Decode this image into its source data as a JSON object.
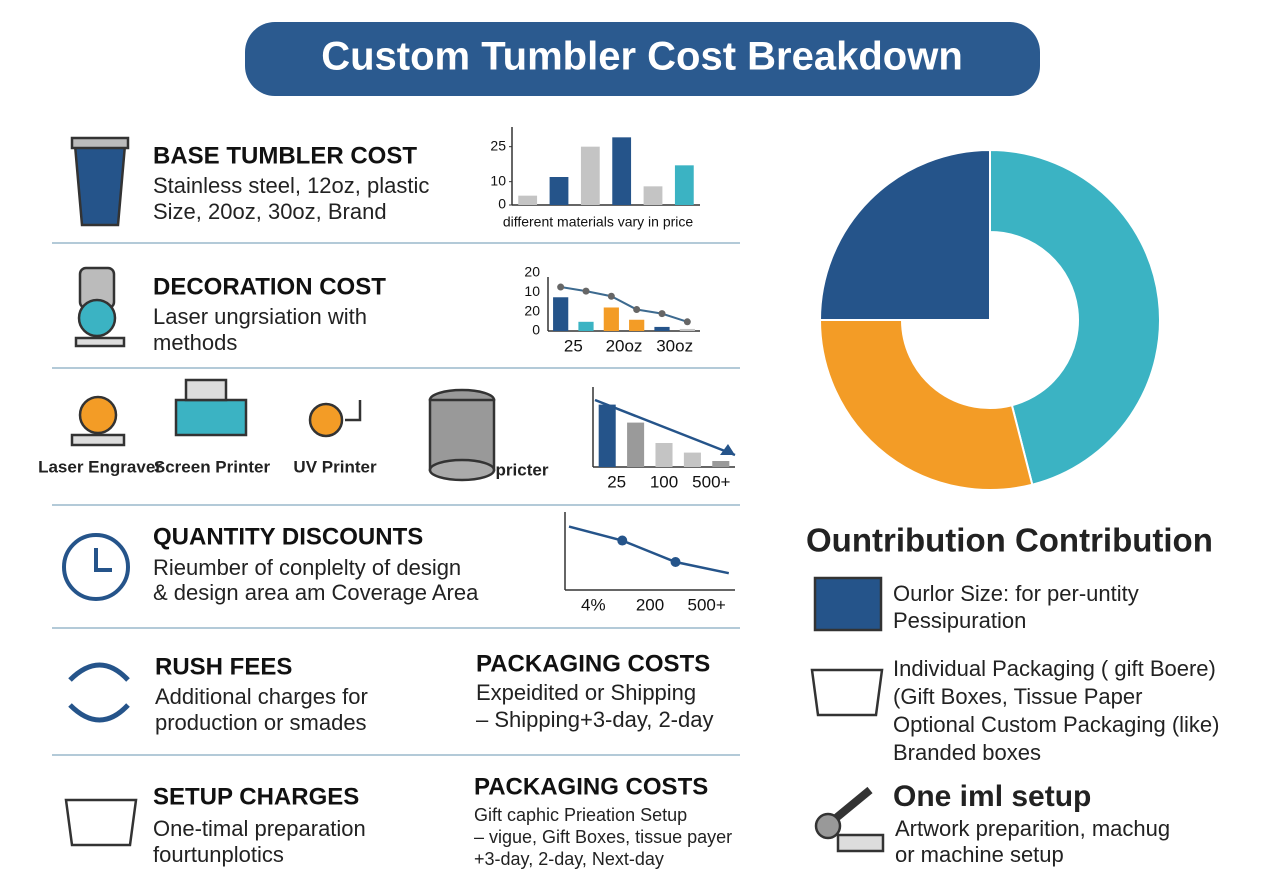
{
  "title": "Custom Tumbler Cost Breakdown",
  "sections": [
    {
      "heading": "BASE TUMBLER COST",
      "lines": [
        "Stainless steel, 12oz, plastic",
        "Size, 20oz, 30oz, Brand"
      ]
    },
    {
      "heading": "DECORATION COST",
      "lines": [
        "Laser ungrsiation with",
        "methods"
      ]
    },
    {
      "heading": "QUANTITY DISCOUNTS",
      "lines": [
        "Rieumber of conplelty of design",
        "&  design area am Coverage Area"
      ]
    },
    {
      "heading": "RUSH FEES",
      "lines": [
        "Additional charges for",
        "production or smades"
      ]
    },
    {
      "heading": "PACKAGING COSTS",
      "lines": [
        "Expeidited or Shipping",
        "– Shipping+3-day, 2-day"
      ]
    },
    {
      "heading": "SETUP CHARGES",
      "lines": [
        "One-timal preparation",
        "fourtunplotics"
      ]
    },
    {
      "heading": "PACKAGING COSTS",
      "lines": [
        "Gift caphic Prieation Setup",
        "– vigue, Gift Boxes, tissue payer",
        "+3-day, 2-day, Next-day"
      ]
    }
  ],
  "equipment": [
    "Laser Engraver",
    "Screen Printer",
    "UV Printer",
    "pricter"
  ],
  "contribution": {
    "heading": "Ountribution Contribution",
    "items": [
      [
        "Ourlor Size: for per-untity",
        "Pessipuration"
      ],
      [
        "Individual Packaging ( gift Boere)",
        "(Gift Boxes, Tissue Paper",
        "Optional Custom Packaging (like)",
        "Branded boxes"
      ]
    ],
    "setup": {
      "heading": "One iml setup",
      "lines": [
        "Artwork preparition, machug",
        "or machine setup"
      ]
    }
  },
  "chart_data": [
    {
      "type": "bar",
      "caption": "different materials vary in price",
      "categories": [
        null,
        null,
        null,
        null,
        null,
        null
      ],
      "values": [
        4,
        12,
        25,
        29,
        8,
        17
      ],
      "colors": [
        "#c4c4c4",
        "#25548a",
        "#c4c4c4",
        "#25548a",
        "#c4c4c4",
        "#3bb3c3"
      ],
      "ylim": [
        0,
        30
      ],
      "yticks": [
        25,
        10,
        0
      ]
    },
    {
      "type": "bar-line",
      "y_labels": [
        "20",
        "10",
        "20",
        "0"
      ],
      "x_labels": [
        "25",
        "20oz",
        "30oz"
      ],
      "values": [
        33,
        9,
        23,
        11,
        4,
        2
      ],
      "colors": [
        "#25548a",
        "#3bb3c3",
        "#f39c26",
        "#f39c26",
        "#25548a",
        "#c4c4c4"
      ],
      "line_values": [
        43,
        39,
        34,
        21,
        17,
        9
      ],
      "line_color": "#3d6a8f",
      "ylim": [
        0,
        45
      ]
    },
    {
      "type": "bar",
      "x_labels": [
        "25",
        "100",
        "500+"
      ],
      "values": [
        52,
        37,
        20,
        12,
        5
      ],
      "colors": [
        "#25548a",
        "#9a9a9a",
        "#c4c4c4",
        "#c4c4c4",
        "#9a9a9a"
      ],
      "ylim": [
        0,
        60
      ]
    },
    {
      "type": "line",
      "x_labels": [
        "4%",
        "200",
        "500+"
      ],
      "values": [
        68,
        53,
        30,
        18
      ],
      "color": "#25548a",
      "ylim": [
        0,
        75
      ]
    },
    {
      "type": "donut",
      "values": [
        46,
        29,
        25
      ],
      "colors": [
        "#3bb3c3",
        "#f39c26",
        "#25548a"
      ]
    }
  ]
}
